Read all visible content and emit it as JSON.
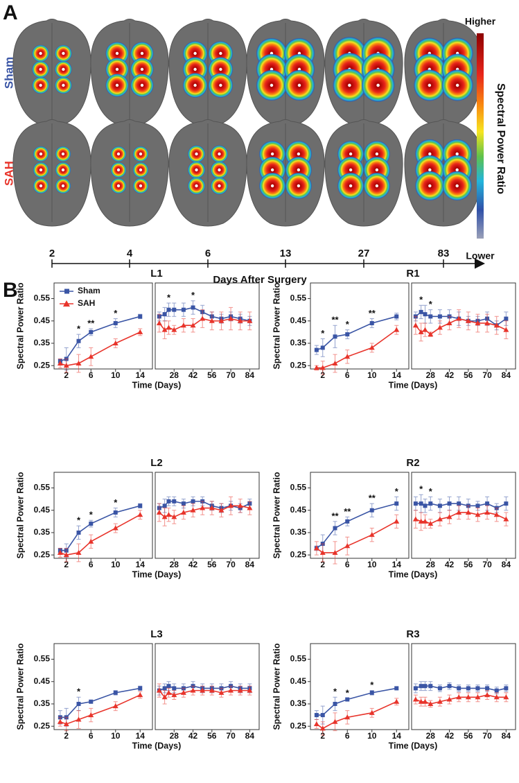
{
  "panel_a": {
    "label": "A",
    "rows": [
      "Sham",
      "SAH"
    ],
    "days": [
      "2",
      "4",
      "6",
      "13",
      "27",
      "83"
    ],
    "axis_label": "Days After Surgery",
    "colorbar": {
      "high": "Higher",
      "low": "Lower",
      "label": "Spectral Power Ratio"
    }
  },
  "panel_b_label": "B",
  "chart_data": [
    {
      "type": "line",
      "title": "L1",
      "xlabel": "Time (Days)",
      "ylabel": "Spectral Power Ratio",
      "legend": "upper left",
      "x": [
        1,
        2,
        4,
        6,
        10,
        14,
        17,
        21,
        24,
        28,
        35,
        42,
        49,
        56,
        63,
        70,
        77,
        84
      ],
      "panels": [
        {
          "xlim": [
            0,
            16
          ],
          "xticks": [
            2,
            6,
            10,
            14
          ]
        },
        {
          "xlim": [
            14,
            91
          ],
          "xticks": [
            28,
            42,
            56,
            70,
            84
          ]
        }
      ],
      "ylim": [
        0.235,
        0.62
      ],
      "yticks": [
        0.25,
        0.35,
        0.45,
        0.55
      ],
      "series": [
        {
          "name": "Sham",
          "color": "#3a55a5",
          "marker": "square",
          "values": [
            0.27,
            0.28,
            0.36,
            0.4,
            0.44,
            0.47,
            0.47,
            0.48,
            0.5,
            0.5,
            0.5,
            0.51,
            0.49,
            0.47,
            0.46,
            0.47,
            0.46,
            0.45
          ],
          "errors": [
            0.01,
            0.05,
            0.03,
            0.015,
            0.02,
            0.01,
            0.02,
            0.03,
            0.03,
            0.03,
            0.03,
            0.03,
            0.03,
            0.02,
            0.02,
            0.02,
            0.02,
            0.02
          ]
        },
        {
          "name": "SAH",
          "color": "#e8342b",
          "marker": "triangle",
          "values": [
            0.26,
            0.25,
            0.26,
            0.29,
            0.35,
            0.4,
            0.44,
            0.41,
            0.42,
            0.41,
            0.43,
            0.43,
            0.46,
            0.45,
            0.45,
            0.46,
            0.45,
            0.45
          ],
          "errors": [
            0.02,
            0.03,
            0.04,
            0.04,
            0.02,
            0.015,
            0.04,
            0.04,
            0.03,
            0.02,
            0.03,
            0.03,
            0.04,
            0.04,
            0.04,
            0.05,
            0.04,
            0.04
          ]
        }
      ],
      "annotations": [
        {
          "x": 4,
          "text": "*"
        },
        {
          "x": 6,
          "text": "**"
        },
        {
          "x": 10,
          "text": "*"
        },
        {
          "x": 24,
          "text": "*"
        },
        {
          "x": 42,
          "text": "*"
        }
      ]
    },
    {
      "type": "line",
      "title": "R1",
      "xlabel": "Time (Days)",
      "ylabel": "Spectral Power Ratio",
      "x": [
        1,
        2,
        4,
        6,
        10,
        14,
        17,
        21,
        24,
        28,
        35,
        42,
        49,
        56,
        63,
        70,
        77,
        84
      ],
      "panels": [
        {
          "xlim": [
            0,
            16
          ],
          "xticks": [
            2,
            6,
            10,
            14
          ]
        },
        {
          "xlim": [
            14,
            91
          ],
          "xticks": [
            28,
            42,
            56,
            70,
            84
          ]
        }
      ],
      "ylim": [
        0.235,
        0.62
      ],
      "yticks": [
        0.25,
        0.35,
        0.45,
        0.55
      ],
      "series": [
        {
          "color": "#3a55a5",
          "marker": "square",
          "values": [
            0.32,
            0.33,
            0.38,
            0.39,
            0.44,
            0.47,
            0.47,
            0.49,
            0.48,
            0.47,
            0.47,
            0.47,
            0.46,
            0.45,
            0.45,
            0.46,
            0.43,
            0.46
          ],
          "errors": [
            0.02,
            0.04,
            0.05,
            0.02,
            0.02,
            0.015,
            0.02,
            0.03,
            0.04,
            0.03,
            0.03,
            0.03,
            0.03,
            0.02,
            0.02,
            0.03,
            0.02,
            0.03
          ]
        },
        {
          "color": "#e8342b",
          "marker": "triangle",
          "values": [
            0.24,
            0.24,
            0.26,
            0.29,
            0.33,
            0.41,
            0.43,
            0.4,
            0.41,
            0.39,
            0.42,
            0.44,
            0.46,
            0.45,
            0.44,
            0.44,
            0.43,
            0.41
          ],
          "errors": [
            0.01,
            0.03,
            0.04,
            0.03,
            0.02,
            0.02,
            0.04,
            0.04,
            0.03,
            0.01,
            0.03,
            0.03,
            0.04,
            0.04,
            0.04,
            0.04,
            0.04,
            0.04
          ]
        }
      ],
      "annotations": [
        {
          "x": 2,
          "text": "*"
        },
        {
          "x": 4,
          "text": "**"
        },
        {
          "x": 6,
          "text": "*"
        },
        {
          "x": 10,
          "text": "**"
        },
        {
          "x": 21,
          "text": "*"
        },
        {
          "x": 28,
          "text": "*"
        }
      ]
    },
    {
      "type": "line",
      "title": "L2",
      "xlabel": "Time (Days)",
      "ylabel": "Spectral Power Ratio",
      "x": [
        1,
        2,
        4,
        6,
        10,
        14,
        17,
        21,
        24,
        28,
        35,
        42,
        49,
        56,
        63,
        70,
        77,
        84
      ],
      "panels": [
        {
          "xlim": [
            0,
            16
          ],
          "xticks": [
            2,
            6,
            10,
            14
          ]
        },
        {
          "xlim": [
            14,
            91
          ],
          "xticks": [
            28,
            42,
            56,
            70,
            84
          ]
        }
      ],
      "ylim": [
        0.235,
        0.62
      ],
      "yticks": [
        0.25,
        0.35,
        0.45,
        0.55
      ],
      "series": [
        {
          "color": "#3a55a5",
          "marker": "square",
          "values": [
            0.27,
            0.27,
            0.35,
            0.39,
            0.44,
            0.47,
            0.46,
            0.47,
            0.49,
            0.49,
            0.48,
            0.49,
            0.49,
            0.47,
            0.46,
            0.47,
            0.46,
            0.48
          ],
          "errors": [
            0.01,
            0.03,
            0.03,
            0.015,
            0.02,
            0.01,
            0.02,
            0.03,
            0.02,
            0.02,
            0.02,
            0.02,
            0.02,
            0.02,
            0.02,
            0.02,
            0.02,
            0.02
          ]
        },
        {
          "color": "#e8342b",
          "marker": "triangle",
          "values": [
            0.26,
            0.25,
            0.26,
            0.31,
            0.37,
            0.43,
            0.44,
            0.42,
            0.43,
            0.42,
            0.44,
            0.45,
            0.46,
            0.46,
            0.45,
            0.47,
            0.47,
            0.46
          ],
          "errors": [
            0.02,
            0.03,
            0.04,
            0.03,
            0.02,
            0.02,
            0.04,
            0.04,
            0.03,
            0.03,
            0.03,
            0.03,
            0.03,
            0.03,
            0.03,
            0.04,
            0.03,
            0.03
          ]
        }
      ],
      "annotations": [
        {
          "x": 4,
          "text": "*"
        },
        {
          "x": 6,
          "text": "*"
        },
        {
          "x": 10,
          "text": "*"
        }
      ]
    },
    {
      "type": "line",
      "title": "R2",
      "xlabel": "Time (Days)",
      "ylabel": "Spectral Power Ratio",
      "x": [
        1,
        2,
        4,
        6,
        10,
        14,
        17,
        21,
        24,
        28,
        35,
        42,
        49,
        56,
        63,
        70,
        77,
        84
      ],
      "panels": [
        {
          "xlim": [
            0,
            16
          ],
          "xticks": [
            2,
            6,
            10,
            14
          ]
        },
        {
          "xlim": [
            14,
            91
          ],
          "xticks": [
            28,
            42,
            56,
            70,
            84
          ]
        }
      ],
      "ylim": [
        0.235,
        0.62
      ],
      "yticks": [
        0.25,
        0.35,
        0.45,
        0.55
      ],
      "series": [
        {
          "color": "#3a55a5",
          "marker": "square",
          "values": [
            0.28,
            0.3,
            0.37,
            0.4,
            0.45,
            0.48,
            0.48,
            0.48,
            0.47,
            0.48,
            0.47,
            0.48,
            0.48,
            0.47,
            0.47,
            0.48,
            0.46,
            0.48
          ],
          "errors": [
            0.01,
            0.04,
            0.03,
            0.02,
            0.03,
            0.03,
            0.03,
            0.04,
            0.03,
            0.03,
            0.03,
            0.03,
            0.03,
            0.03,
            0.02,
            0.03,
            0.02,
            0.03
          ]
        },
        {
          "color": "#e8342b",
          "marker": "triangle",
          "values": [
            0.28,
            0.26,
            0.26,
            0.29,
            0.34,
            0.4,
            0.41,
            0.4,
            0.4,
            0.39,
            0.41,
            0.42,
            0.44,
            0.44,
            0.43,
            0.44,
            0.43,
            0.41
          ],
          "errors": [
            0.03,
            0.04,
            0.05,
            0.04,
            0.03,
            0.03,
            0.04,
            0.04,
            0.03,
            0.02,
            0.03,
            0.03,
            0.03,
            0.03,
            0.03,
            0.03,
            0.03,
            0.03
          ]
        }
      ],
      "annotations": [
        {
          "x": 4,
          "text": "**"
        },
        {
          "x": 6,
          "text": "**"
        },
        {
          "x": 10,
          "text": "**"
        },
        {
          "x": 14,
          "text": "*"
        },
        {
          "x": 21,
          "text": "*"
        },
        {
          "x": 28,
          "text": "*"
        }
      ]
    },
    {
      "type": "line",
      "title": "L3",
      "xlabel": "Time (Days)",
      "ylabel": "Spectral Power Ratio",
      "x": [
        1,
        2,
        4,
        6,
        10,
        14,
        17,
        21,
        24,
        28,
        35,
        42,
        49,
        56,
        63,
        70,
        77,
        84
      ],
      "panels": [
        {
          "xlim": [
            0,
            16
          ],
          "xticks": [
            2,
            6,
            10,
            14
          ]
        },
        {
          "xlim": [
            14,
            91
          ],
          "xticks": [
            28,
            42,
            56,
            70,
            84
          ]
        }
      ],
      "ylim": [
        0.235,
        0.62
      ],
      "yticks": [
        0.25,
        0.35,
        0.45,
        0.55
      ],
      "series": [
        {
          "color": "#3a55a5",
          "marker": "square",
          "values": [
            0.29,
            0.29,
            0.35,
            0.36,
            0.4,
            0.42,
            0.41,
            0.42,
            0.43,
            0.42,
            0.42,
            0.43,
            0.42,
            0.42,
            0.42,
            0.43,
            0.42,
            0.42
          ],
          "errors": [
            0.03,
            0.04,
            0.03,
            0.005,
            0.01,
            0.01,
            0.02,
            0.02,
            0.02,
            0.02,
            0.02,
            0.02,
            0.02,
            0.02,
            0.02,
            0.02,
            0.02,
            0.02
          ]
        },
        {
          "color": "#e8342b",
          "marker": "triangle",
          "values": [
            0.27,
            0.26,
            0.28,
            0.3,
            0.34,
            0.39,
            0.41,
            0.38,
            0.4,
            0.39,
            0.4,
            0.41,
            0.41,
            0.41,
            0.4,
            0.41,
            0.41,
            0.41
          ],
          "errors": [
            0.02,
            0.03,
            0.04,
            0.03,
            0.02,
            0.015,
            0.03,
            0.03,
            0.02,
            0.02,
            0.02,
            0.02,
            0.02,
            0.02,
            0.02,
            0.02,
            0.02,
            0.02
          ]
        }
      ],
      "annotations": [
        {
          "x": 4,
          "text": "*"
        }
      ]
    },
    {
      "type": "line",
      "title": "R3",
      "xlabel": "Time (Days)",
      "ylabel": "Spectral Power Ratio",
      "x": [
        1,
        2,
        4,
        6,
        10,
        14,
        17,
        21,
        24,
        28,
        35,
        42,
        49,
        56,
        63,
        70,
        77,
        84
      ],
      "panels": [
        {
          "xlim": [
            0,
            16
          ],
          "xticks": [
            2,
            6,
            10,
            14
          ]
        },
        {
          "xlim": [
            14,
            91
          ],
          "xticks": [
            28,
            42,
            56,
            70,
            84
          ]
        }
      ],
      "ylim": [
        0.235,
        0.62
      ],
      "yticks": [
        0.25,
        0.35,
        0.45,
        0.55
      ],
      "series": [
        {
          "color": "#3a55a5",
          "marker": "square",
          "values": [
            0.3,
            0.3,
            0.35,
            0.37,
            0.4,
            0.42,
            0.42,
            0.43,
            0.43,
            0.43,
            0.42,
            0.43,
            0.42,
            0.42,
            0.42,
            0.42,
            0.41,
            0.42
          ],
          "errors": [
            0.02,
            0.04,
            0.03,
            0.005,
            0.01,
            0.005,
            0.02,
            0.02,
            0.02,
            0.02,
            0.015,
            0.015,
            0.015,
            0.015,
            0.015,
            0.015,
            0.015,
            0.015
          ]
        },
        {
          "color": "#e8342b",
          "marker": "triangle",
          "values": [
            0.26,
            0.24,
            0.27,
            0.29,
            0.31,
            0.36,
            0.37,
            0.36,
            0.36,
            0.35,
            0.36,
            0.37,
            0.38,
            0.38,
            0.38,
            0.39,
            0.38,
            0.38
          ],
          "errors": [
            0.02,
            0.03,
            0.04,
            0.03,
            0.02,
            0.015,
            0.02,
            0.02,
            0.02,
            0.015,
            0.02,
            0.02,
            0.02,
            0.02,
            0.02,
            0.02,
            0.02,
            0.02
          ]
        }
      ],
      "annotations": [
        {
          "x": 4,
          "text": "*"
        },
        {
          "x": 6,
          "text": "*"
        },
        {
          "x": 10,
          "text": "*"
        }
      ]
    }
  ]
}
